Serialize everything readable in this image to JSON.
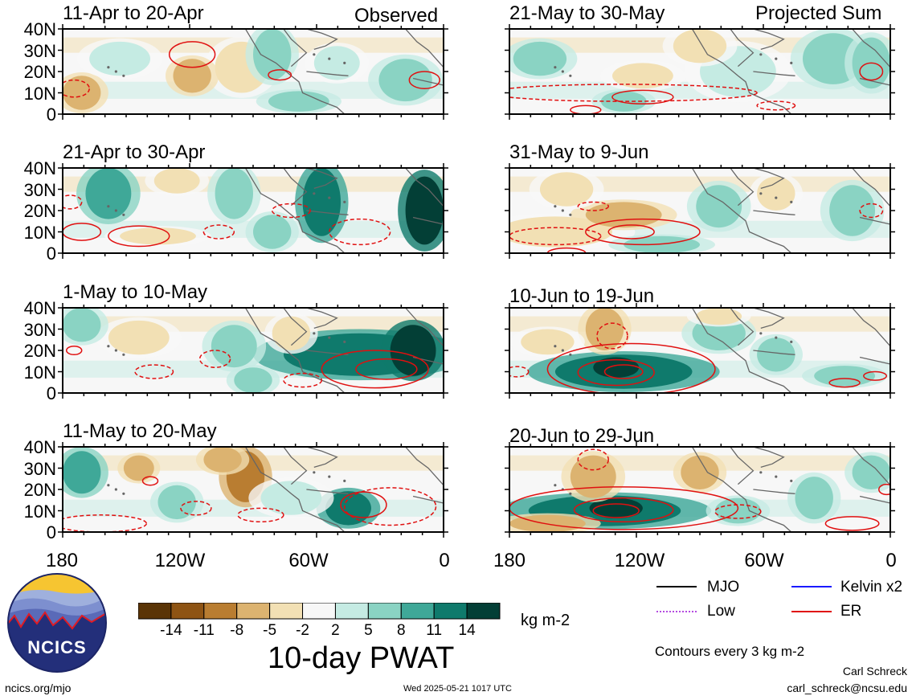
{
  "panels": {
    "left": [
      {
        "title": "11-Apr to 20-Apr",
        "tag": "Observed"
      },
      {
        "title": "21-Apr to 30-Apr",
        "tag": ""
      },
      {
        "title": "1-May to 10-May",
        "tag": ""
      },
      {
        "title": "11-May to 20-May",
        "tag": ""
      }
    ],
    "right": [
      {
        "title": "21-May to 30-May",
        "tag": "Projected Sum"
      },
      {
        "title": "31-May to 9-Jun",
        "tag": ""
      },
      {
        "title": "10-Jun to 19-Jun",
        "tag": ""
      },
      {
        "title": "20-Jun to 29-Jun",
        "tag": ""
      }
    ]
  },
  "axes": {
    "lat_labels": [
      "40N",
      "30N",
      "20N",
      "10N",
      "0"
    ],
    "lon_labels": [
      "180",
      "120W",
      "60W",
      "0"
    ]
  },
  "legend": {
    "items": [
      "MJO",
      "Kelvin x2",
      "Low",
      "ER"
    ],
    "colors": {
      "MJO": "#000000",
      "Kelvin x2": "#1a1aff",
      "Low": "#b44be0",
      "ER": "#e01010"
    },
    "contour_note": "Contours every 3 kg m-2"
  },
  "colorbar": {
    "labels": [
      "-14",
      "-11",
      "-8",
      "-5",
      "-2",
      "2",
      "5",
      "8",
      "11",
      "14"
    ],
    "colors": [
      "#5a3406",
      "#8e5414",
      "#b97d31",
      "#dcb370",
      "#f2e0b4",
      "#f7f7f7",
      "#c5ebe3",
      "#8ad3c3",
      "#3fa898",
      "#0f7a6c",
      "#033f36"
    ],
    "units": "kg m-2",
    "title": "10-day PWAT"
  },
  "footer": {
    "logo_text": "NCICS",
    "url": "ncics.org/mjo",
    "timestamp": "Wed 2025-05-21 1017 UTC",
    "author": "Carl Schreck",
    "email": "carl_schreck@ncsu.edu"
  }
}
